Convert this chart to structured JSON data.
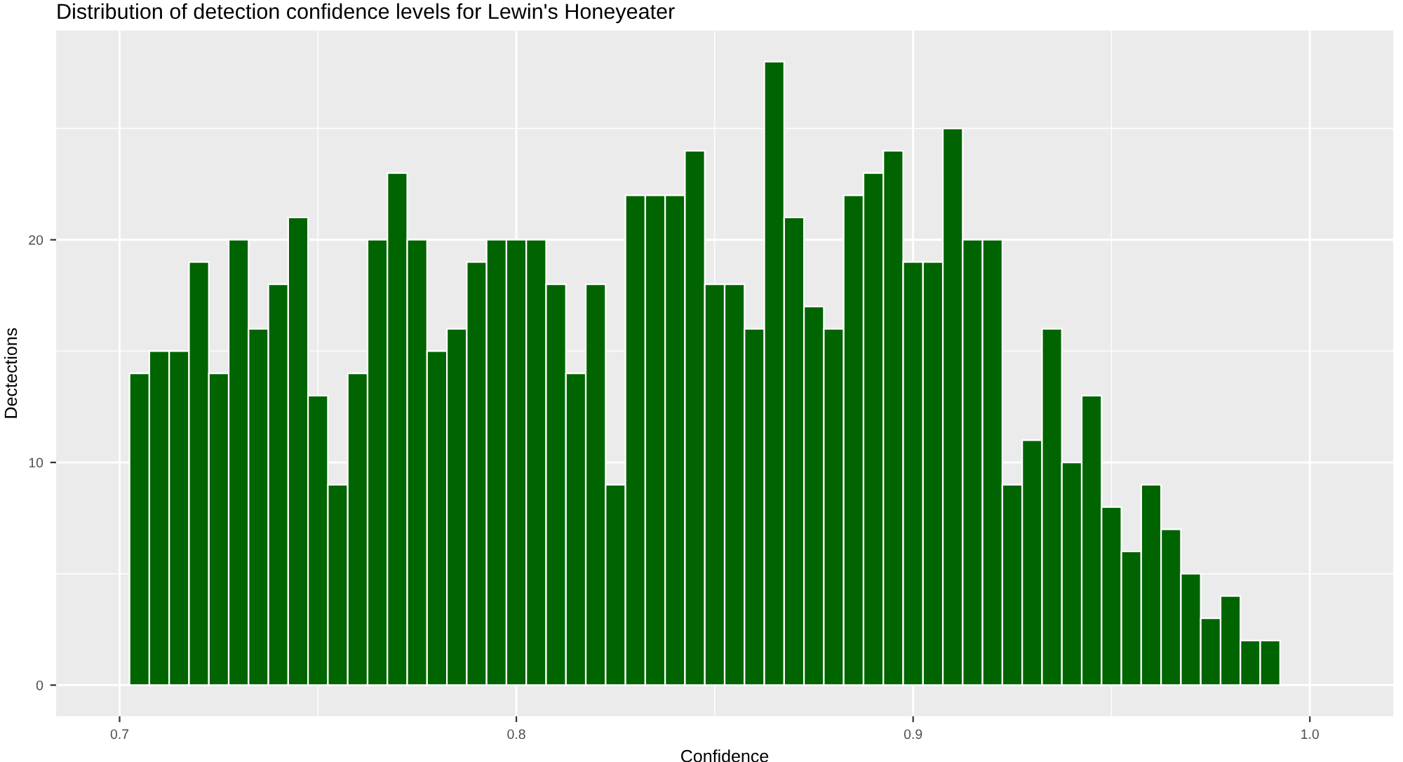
{
  "chart_data": {
    "type": "histogram",
    "title": "Distribution of detection confidence levels for Lewin's Honeyeater",
    "xlabel": "Confidence",
    "ylabel": "Dectections",
    "bins": [
      0.7025,
      0.7075,
      0.7125,
      0.7175,
      0.7225,
      0.7275,
      0.7325,
      0.7375,
      0.7425,
      0.7475,
      0.7525,
      0.7575,
      0.7625,
      0.7675,
      0.7725,
      0.7775,
      0.7825,
      0.7875,
      0.7925,
      0.7975,
      0.8025,
      0.8075,
      0.8125,
      0.8175,
      0.8225,
      0.8275,
      0.8325,
      0.8375,
      0.8425,
      0.8475,
      0.8525,
      0.8575,
      0.8625,
      0.8675,
      0.8725,
      0.8775,
      0.8825,
      0.8875,
      0.8925,
      0.8975,
      0.9025,
      0.9075,
      0.9125,
      0.9175,
      0.9225,
      0.9275,
      0.9325,
      0.9375,
      0.9425,
      0.9475,
      0.9525,
      0.9575,
      0.9625,
      0.9675,
      0.9725,
      0.9775,
      0.9825,
      0.9875,
      0.9925
    ],
    "values": [
      14,
      15,
      15,
      19,
      14,
      20,
      16,
      18,
      21,
      13,
      9,
      14,
      20,
      23,
      20,
      15,
      16,
      19,
      20,
      20,
      20,
      18,
      14,
      18,
      9,
      22,
      22,
      22,
      24,
      18,
      18,
      16,
      28,
      21,
      17,
      16,
      22,
      23,
      24,
      19,
      19,
      25,
      20,
      20,
      9,
      11,
      16,
      10,
      13,
      8,
      6,
      9,
      7,
      5,
      3,
      4,
      2,
      2
    ],
    "color": "#006400",
    "xlim": [
      0.684,
      1.021
    ],
    "xticks": [
      0.7,
      0.8,
      0.9,
      {
        "value": 1.0,
        "label": "1.0"
      }
    ],
    "ylim": [
      -1.4,
      29.4
    ],
    "yticks": [
      0,
      10,
      20
    ],
    "grid": true
  }
}
